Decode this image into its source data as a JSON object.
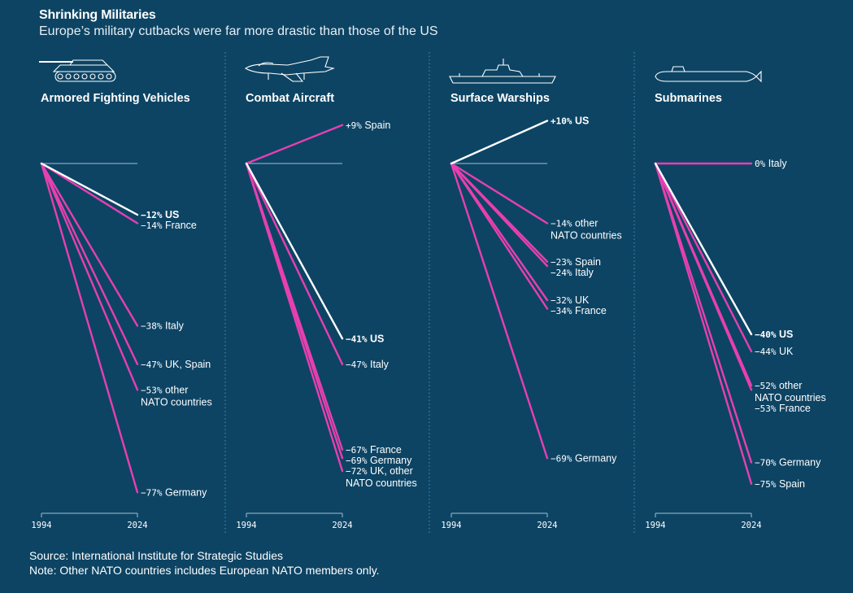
{
  "title": "Shrinking Militaries",
  "subtitle": "Europe’s military cutbacks were far more drastic than those of the US",
  "source": "Source: International Institute for Strategic Studies",
  "note": "Note: Other NATO countries includes European NATO members only.",
  "colors": {
    "background": "#0d4464",
    "us_line": "#ffffff",
    "europe_line": "#e83fb0",
    "baseline": "#9fbfd1",
    "divider": "#3a86b4"
  },
  "chart_data": [
    {
      "type": "line",
      "title": "Armored Fighting Vehicles",
      "icon": "tank-icon",
      "x": [
        "1994",
        "2024"
      ],
      "series": [
        {
          "name": "US",
          "change": -12,
          "label_lines": [
            "−12% US"
          ],
          "highlight": true
        },
        {
          "name": "France",
          "change": -14,
          "label_lines": [
            "−14% France"
          ]
        },
        {
          "name": "Italy",
          "change": -38,
          "label_lines": [
            "−38% Italy"
          ]
        },
        {
          "name": "UK, Spain",
          "change": -47,
          "label_lines": [
            "−47% UK, Spain"
          ]
        },
        {
          "name": "other NATO countries",
          "change": -53,
          "label_lines": [
            "−53% other",
            "NATO countries"
          ]
        },
        {
          "name": "Germany",
          "change": -77,
          "label_lines": [
            "−77% Germany"
          ]
        }
      ]
    },
    {
      "type": "line",
      "title": "Combat Aircraft",
      "icon": "fighter-jet-icon",
      "x": [
        "1994",
        "2024"
      ],
      "series": [
        {
          "name": "Spain",
          "change": 9,
          "label_lines": [
            "+9% Spain"
          ]
        },
        {
          "name": "US",
          "change": -41,
          "label_lines": [
            "−41% US"
          ],
          "highlight": true
        },
        {
          "name": "Italy",
          "change": -47,
          "label_lines": [
            "−47% Italy"
          ]
        },
        {
          "name": "France",
          "change": -67,
          "label_lines": [
            "−67% France"
          ]
        },
        {
          "name": "Germany",
          "change": -69,
          "label_lines": [
            "−69% Germany"
          ]
        },
        {
          "name": "UK, other NATO countries",
          "change": -72,
          "label_lines": [
            "−72% UK, other",
            "NATO countries"
          ]
        }
      ]
    },
    {
      "type": "line",
      "title": "Surface Warships",
      "icon": "warship-icon",
      "x": [
        "1994",
        "2024"
      ],
      "series": [
        {
          "name": "US",
          "change": 10,
          "label_lines": [
            "+10% US"
          ],
          "highlight": true
        },
        {
          "name": "other NATO countries",
          "change": -14,
          "label_lines": [
            "−14% other",
            "NATO countries"
          ]
        },
        {
          "name": "Spain",
          "change": -23,
          "label_lines": [
            "−23% Spain"
          ]
        },
        {
          "name": "Italy",
          "change": -24,
          "label_lines": [
            "−24% Italy"
          ]
        },
        {
          "name": "UK",
          "change": -32,
          "label_lines": [
            "−32% UK"
          ]
        },
        {
          "name": "France",
          "change": -34,
          "label_lines": [
            "−34% France"
          ]
        },
        {
          "name": "Germany",
          "change": -69,
          "label_lines": [
            "−69% Germany"
          ]
        }
      ]
    },
    {
      "type": "line",
      "title": "Submarines",
      "icon": "submarine-icon",
      "x": [
        "1994",
        "2024"
      ],
      "series": [
        {
          "name": "Italy",
          "change": 0,
          "label_lines": [
            "0% Italy"
          ]
        },
        {
          "name": "US",
          "change": -40,
          "label_lines": [
            "−40% US"
          ],
          "highlight": true
        },
        {
          "name": "UK",
          "change": -44,
          "label_lines": [
            "−44% UK"
          ]
        },
        {
          "name": "other NATO countries",
          "change": -52,
          "label_lines": [
            "−52% other",
            "NATO countries"
          ]
        },
        {
          "name": "France",
          "change": -53,
          "label_lines": [
            "−53% France"
          ]
        },
        {
          "name": "Germany",
          "change": -70,
          "label_lines": [
            "−70% Germany"
          ]
        },
        {
          "name": "Spain",
          "change": -75,
          "label_lines": [
            "−75% Spain"
          ]
        }
      ]
    }
  ]
}
